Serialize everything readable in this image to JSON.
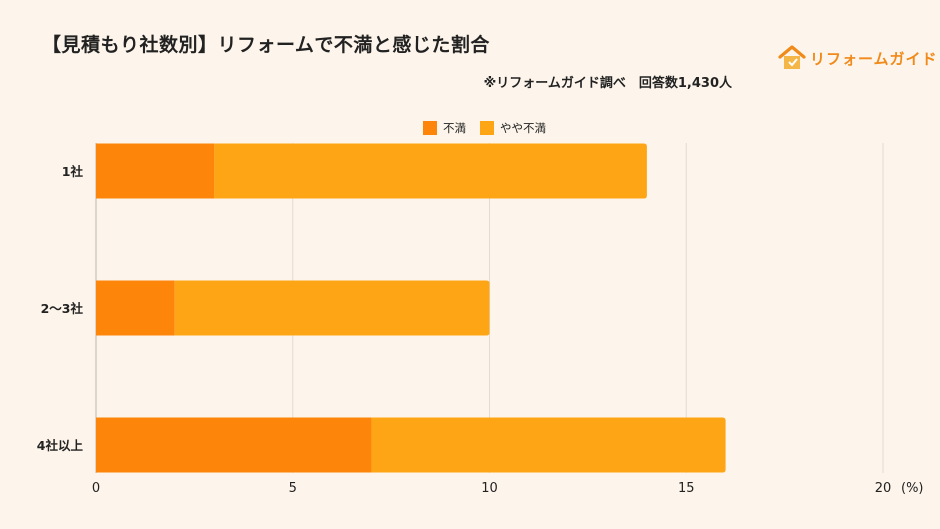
{
  "header": {
    "title": "【見積もり社数別】リフォームで不満と感じた割合",
    "note": "※リフォームガイド調べ　回答数1,430人",
    "logo_text": "リフォームガイド",
    "logo_icon": "house-icon"
  },
  "chart_data": {
    "type": "bar",
    "orientation": "horizontal",
    "stacked": true,
    "categories": [
      "1社",
      "2〜3社",
      "4社以上"
    ],
    "series": [
      {
        "name": "不満",
        "values": [
          3,
          2,
          7
        ],
        "color": "#fd8509"
      },
      {
        "name": "やや不満",
        "values": [
          11,
          8,
          9
        ],
        "color": "#fea516"
      }
    ],
    "xlim": [
      0,
      20
    ],
    "xticks": [
      "0",
      "5",
      "10",
      "15",
      "20"
    ],
    "xunit": "(%)",
    "grid": true,
    "legend_position": "top-center"
  },
  "colors": {
    "background": "#fdf5eb",
    "grid": "#e3dcd3",
    "accent": "#f08a1a"
  }
}
